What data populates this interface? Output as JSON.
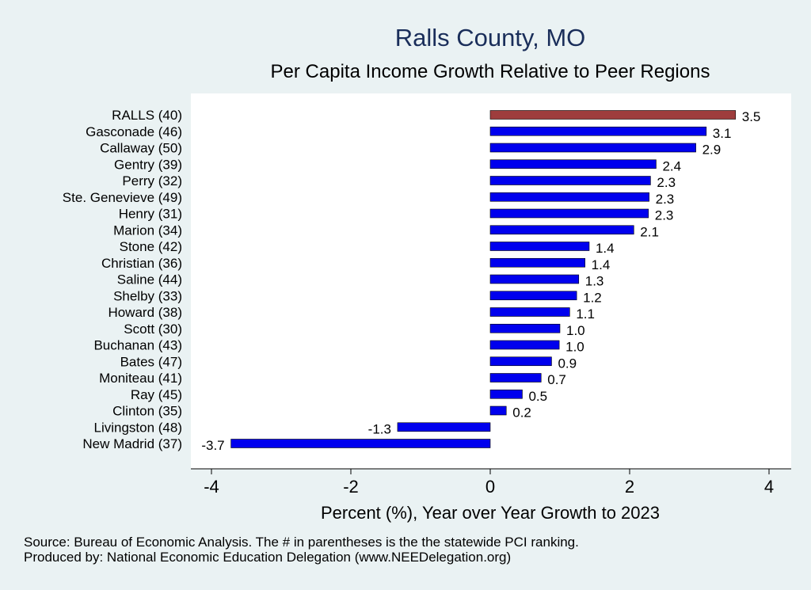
{
  "chart_data": {
    "type": "bar",
    "orientation": "horizontal",
    "title": "Ralls County, MO",
    "subtitle": "Per Capita Income Growth Relative to Peer Regions",
    "xlabel": "Percent (%), Year over Year Growth to 2023",
    "ylabel": "",
    "xlim": [
      -4.2,
      4.0
    ],
    "xticks": [
      "-4",
      "-2",
      "0",
      "2",
      "4"
    ],
    "grid": false,
    "categories": [
      "RALLS (40)",
      "Gasconade (46)",
      "Callaway (50)",
      "Gentry (39)",
      "Perry (32)",
      "Ste. Genevieve (49)",
      "Henry (31)",
      "Marion (34)",
      "Stone (42)",
      "Christian (36)",
      "Saline (44)",
      "Shelby (33)",
      "Howard (38)",
      "Scott (30)",
      "Buchanan (43)",
      "Bates (47)",
      "Moniteau (41)",
      "Ray (45)",
      "Clinton (35)",
      "Livingston (48)",
      "New Madrid (37)"
    ],
    "values": [
      3.52,
      3.1,
      2.95,
      2.38,
      2.3,
      2.28,
      2.27,
      2.06,
      1.42,
      1.36,
      1.27,
      1.24,
      1.14,
      1.0,
      0.99,
      0.88,
      0.73,
      0.46,
      0.23,
      -1.33,
      -3.72
    ],
    "data_labels": [
      "3.5",
      "3.1",
      "2.9",
      "2.4",
      "2.3",
      "2.3",
      "2.3",
      "2.1",
      "1.4",
      "1.4",
      "1.3",
      "1.2",
      "1.1",
      "1.0",
      "1.0",
      "0.9",
      "0.7",
      "0.5",
      "0.2",
      "-1.3",
      "-3.7"
    ],
    "highlight_index": 0,
    "colors": {
      "highlight": "#9e3d3d",
      "bar": "#0000ee",
      "plot_bg": "#ffffff",
      "page_bg": "#eaf2f3",
      "title": "#1a2e5a"
    }
  },
  "footer": {
    "source": "Source: Bureau of Economic Analysis. The # in parentheses is the the statewide PCI ranking.",
    "produced_by": "Produced by: National Economic Education Delegation (www.NEEDelegation.org)"
  }
}
